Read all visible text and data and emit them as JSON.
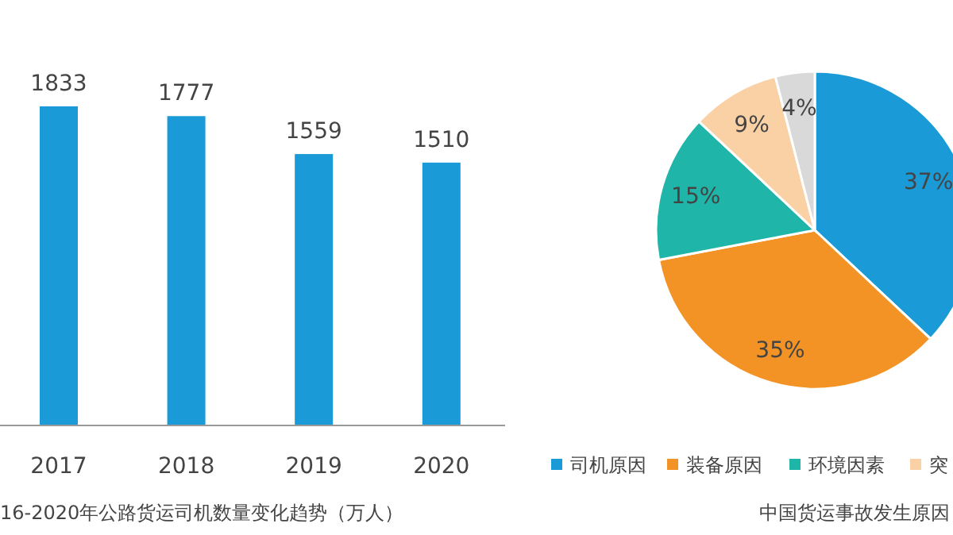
{
  "chart_data": [
    {
      "type": "bar",
      "categories": [
        "2017",
        "2018",
        "2019",
        "2020"
      ],
      "values": [
        1833,
        1777,
        1559,
        1510
      ],
      "color": "#1a9ad6",
      "data_labels": true,
      "relative": false,
      "annotations": [
        "16-2020年公路货运司机数量变化趋势（万人）"
      ]
    },
    {
      "type": "pie",
      "categories": [
        "司机原因",
        "装备原因",
        "环境因素",
        "突",
        null
      ],
      "values": [
        37,
        35,
        15,
        9,
        4
      ],
      "colors": [
        "#1a9ad6",
        "#f39325",
        "#1fb5a8",
        "#f9d1a4",
        "#d9d9d9"
      ],
      "value_labels": [
        "37%",
        "35%",
        "15%",
        "9%",
        "4%"
      ],
      "legend": "bottom",
      "annotations": [
        "中国货运事故发生原因"
      ]
    }
  ]
}
